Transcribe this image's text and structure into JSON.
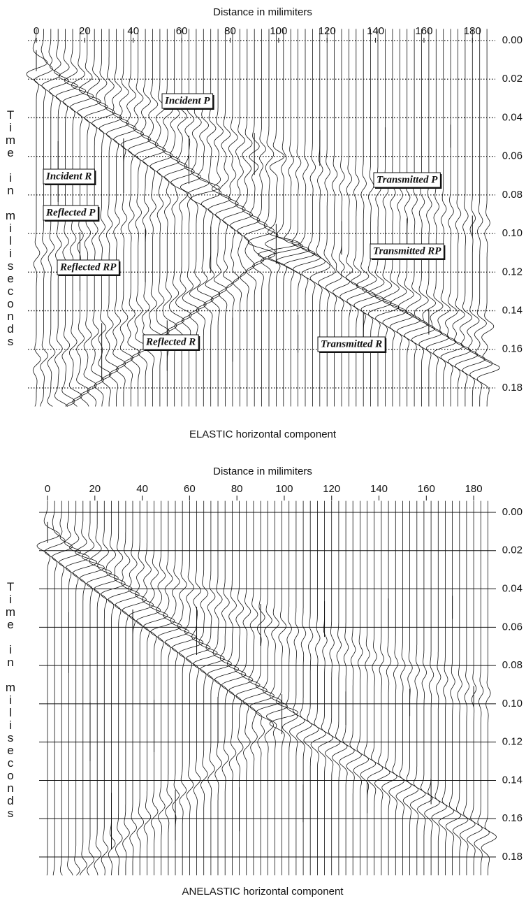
{
  "chart_data": [
    {
      "type": "seismogram",
      "title": "Distance in milimiters",
      "ylabel": "Time in miliseconds",
      "xlabel": "ELASTIC horizontal component",
      "xlim": [
        0,
        190
      ],
      "xticks": [
        0,
        20,
        40,
        60,
        80,
        100,
        120,
        140,
        160,
        180
      ],
      "ylim": [
        0,
        0.18
      ],
      "yticks": [
        {
          "value": 0,
          "label": "0.00"
        },
        0.02,
        0.04,
        0.06,
        0.08,
        {
          "value": 0.1,
          "label": "0.10"
        },
        0.12,
        0.14,
        0.16,
        0.18
      ],
      "grid": "dotted",
      "annotations": [
        "Incident P",
        "Incident R",
        "Transmitted P",
        "Reflected P",
        "Transmitted RP",
        "Reflected RP",
        "Reflected R",
        "Transmitted R"
      ]
    },
    {
      "type": "seismogram",
      "title": "Distance in milimiters",
      "ylabel": "Time in miliseconds",
      "xlabel": "ANELASTIC horizontal component",
      "xlim": [
        0,
        190
      ],
      "xticks": [
        0,
        20,
        40,
        60,
        80,
        100,
        120,
        140,
        160,
        180
      ],
      "ylim": [
        0,
        0.18
      ],
      "yticks": [
        {
          "value": 0,
          "label": "0.00"
        },
        0.02,
        0.04,
        0.06,
        0.08,
        {
          "value": 0.1,
          "label": "0.10"
        },
        0.12,
        0.14,
        0.16,
        0.18
      ],
      "grid": "solid"
    }
  ]
}
